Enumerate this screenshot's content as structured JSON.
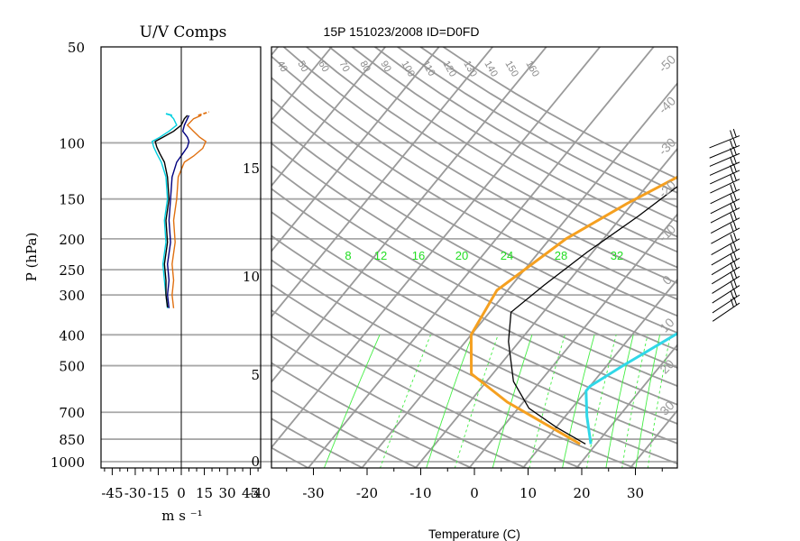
{
  "chart_data": [
    {
      "type": "line",
      "title": "U/V Comps",
      "xlabel": "m s ⁻¹",
      "ylabel": "P (hPa)",
      "xlim": [
        -52,
        52
      ],
      "x_ticks": [
        "-45",
        "-30",
        "-15",
        "0",
        "15",
        "30",
        "45"
      ],
      "y_scale": "log",
      "y_ticks": [
        "50",
        "100",
        "150",
        "200",
        "250",
        "300",
        "400",
        "500",
        "700",
        "850",
        "1000"
      ],
      "grid_y": true,
      "series": [
        {
          "color": "#000080",
          "values": [
            [
              -8,
              330
            ],
            [
              -9,
              300
            ],
            [
              -8,
              270
            ],
            [
              -9,
              240
            ],
            [
              -7,
              205
            ],
            [
              -8,
              175
            ],
            [
              -7,
              150
            ],
            [
              -6,
              128
            ],
            [
              -3,
              115
            ],
            [
              1,
              108
            ],
            [
              4,
              103
            ],
            [
              5,
              99
            ],
            [
              4,
              96
            ],
            [
              1,
              92
            ],
            [
              2,
              88
            ],
            [
              4,
              84
            ],
            [
              5,
              82
            ]
          ]
        },
        {
          "color": "#e07010",
          "values": [
            [
              -5,
              330
            ],
            [
              -6,
              300
            ],
            [
              -5,
              270
            ],
            [
              -6,
              240
            ],
            [
              -4,
              205
            ],
            [
              -5,
              175
            ],
            [
              -3,
              150
            ],
            [
              -2,
              128
            ],
            [
              2,
              115
            ],
            [
              8,
              110
            ],
            [
              14,
              104
            ],
            [
              16,
              99
            ],
            [
              12,
              96
            ],
            [
              8,
              92
            ],
            [
              4,
              88
            ],
            [
              8,
              84
            ],
            [
              13,
              82
            ]
          ]
        },
        {
          "color": "#00d0e0",
          "values": [
            [
              -9,
              330
            ],
            [
              -10,
              300
            ],
            [
              -11,
              270
            ],
            [
              -12,
              240
            ],
            [
              -10,
              205
            ],
            [
              -11,
              175
            ],
            [
              -9,
              150
            ],
            [
              -10,
              128
            ],
            [
              -13,
              115
            ],
            [
              -16,
              108
            ],
            [
              -18,
              103
            ],
            [
              -19,
              99
            ],
            [
              -14,
              96
            ],
            [
              -8,
              92
            ],
            [
              -3,
              88
            ],
            [
              -5,
              84
            ],
            [
              -7,
              82
            ]
          ]
        },
        {
          "color": "#000000",
          "values": [
            [
              -9,
              328
            ],
            [
              -10,
              300
            ],
            [
              -10,
              270
            ],
            [
              -11,
              240
            ],
            [
              -9,
              205
            ],
            [
              -10,
              175
            ],
            [
              -8,
              150
            ],
            [
              -9,
              128
            ],
            [
              -11,
              115
            ],
            [
              -14,
              108
            ],
            [
              -16,
              103
            ],
            [
              -17,
              99
            ],
            [
              -12,
              96
            ],
            [
              -5,
              92
            ],
            [
              0,
              88
            ],
            [
              2,
              84
            ],
            [
              4,
              82
            ]
          ]
        }
      ]
    },
    {
      "type": "line",
      "title": "15P 151023/2008 ID=D0FD",
      "xlabel": "Temperature (C)",
      "xlim": [
        -43,
        43
      ],
      "x_ticks": [
        "-40",
        "-30",
        "-20",
        "-10",
        "0",
        "10",
        "20",
        "30"
      ],
      "y_scale": "log",
      "height_ticks": [
        "0",
        "5",
        "10",
        "15"
      ],
      "mixing_ratio_labels": [
        "8",
        "12",
        "16",
        "20",
        "24",
        "28",
        "32"
      ],
      "dry_adiabat_labels": [
        "40",
        "50",
        "60",
        "70",
        "80",
        "90",
        "100",
        "110",
        "120",
        "130",
        "140",
        "150",
        "160"
      ],
      "right_axis_labels": [
        "-50",
        "-40",
        "-30",
        "-20",
        "-10",
        "0",
        "10",
        "20",
        "30"
      ],
      "series": [
        {
          "color": "#000000",
          "values": [
            [
              18,
              880
            ],
            [
              10,
              780
            ],
            [
              2,
              680
            ],
            [
              -5,
              560
            ],
            [
              -12,
              420
            ],
            [
              -16,
              340
            ],
            [
              -14,
              280
            ],
            [
              -11,
              220
            ],
            [
              -7,
              170
            ],
            [
              -4,
              135
            ],
            [
              -1,
              108
            ],
            [
              0,
              103
            ],
            [
              2,
              99
            ],
            [
              4,
              90
            ],
            [
              6,
              84
            ],
            [
              8,
              80
            ],
            [
              10,
              78
            ]
          ]
        },
        {
          "color": "#f5a020",
          "values": [
            [
              17,
              880
            ],
            [
              9,
              780
            ],
            [
              -3,
              650
            ],
            [
              -14,
              530
            ],
            [
              -20,
              400
            ],
            [
              -22,
              290
            ],
            [
              -17,
              200
            ],
            [
              -11,
              155
            ],
            [
              -5,
              125
            ],
            [
              1,
              103
            ],
            [
              6,
              92
            ],
            [
              11,
              83
            ],
            [
              15,
              78
            ]
          ]
        },
        {
          "color": "#30d8e8",
          "values": [
            [
              19,
              880
            ],
            [
              14,
              720
            ],
            [
              10,
              600
            ],
            [
              10,
              580
            ],
            [
              13,
              500
            ],
            [
              18,
              400
            ],
            [
              25,
              300
            ],
            [
              32,
              200
            ],
            [
              38,
              130
            ],
            [
              44,
              90
            ]
          ]
        }
      ]
    }
  ]
}
